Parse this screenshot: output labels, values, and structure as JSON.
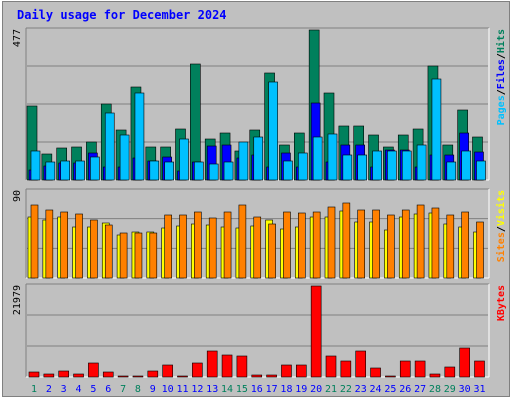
{
  "title": "Daily usage for December 2024",
  "colors": {
    "background": "#c0c0c0",
    "hits": "#00805c",
    "files": "#0000ff",
    "pages": "#00c0ff",
    "visits": "#ffff00",
    "sites": "#ff8000",
    "kbytes": "#ff0000",
    "weekend_day": "#00805c",
    "weekday_day": "#0000ff",
    "title_text": "#0000ff"
  },
  "chart_data": [
    {
      "type": "bar",
      "panel": "hits-files-pages",
      "axis_label": "477",
      "ylim": [
        0,
        477
      ],
      "grid": true,
      "legend": [
        {
          "text": "Pages",
          "color": "#00c0ff"
        },
        {
          "text": "/",
          "color": "#000000"
        },
        {
          "text": "Files",
          "color": "#0000ff"
        },
        {
          "text": "/",
          "color": "#000000"
        },
        {
          "text": "Hits",
          "color": "#00805c"
        }
      ],
      "categories": [
        "1",
        "2",
        "3",
        "4",
        "5",
        "6",
        "7",
        "8",
        "9",
        "10",
        "11",
        "12",
        "13",
        "14",
        "15",
        "16",
        "17",
        "18",
        "19",
        "20",
        "21",
        "22",
        "23",
        "24",
        "25",
        "26",
        "27",
        "28",
        "29",
        "30",
        "31"
      ],
      "series": [
        {
          "name": "Hits",
          "values": [
            235,
            82,
            103,
            105,
            122,
            243,
            160,
            297,
            105,
            105,
            162,
            369,
            131,
            150,
            92,
            158,
            339,
            112,
            150,
            477,
            278,
            173,
            173,
            143,
            106,
            143,
            162,
            363,
            112,
            224,
            138
          ]
        },
        {
          "name": "Files",
          "values": [
            32,
            45,
            55,
            55,
            86,
            40,
            40,
            70,
            60,
            72,
            30,
            56,
            108,
            112,
            70,
            80,
            40,
            85,
            40,
            245,
            56,
            110,
            112,
            40,
            96,
            96,
            40,
            80,
            80,
            150,
            90
          ]
        },
        {
          "name": "Pages",
          "values": [
            92,
            56,
            61,
            61,
            74,
            214,
            144,
            278,
            61,
            56,
            131,
            56,
            51,
            56,
            121,
            137,
            313,
            61,
            85,
            137,
            147,
            80,
            80,
            92,
            92,
            92,
            112,
            321,
            56,
            92,
            61
          ]
        }
      ]
    },
    {
      "type": "bar",
      "panel": "visits-sites",
      "axis_label": "90",
      "ylim": [
        0,
        90
      ],
      "grid": true,
      "legend": [
        {
          "text": "Sites",
          "color": "#ff8000"
        },
        {
          "text": "/",
          "color": "#000000"
        },
        {
          "text": "Visits",
          "color": "#ffff00"
        }
      ],
      "categories": [
        "1",
        "2",
        "3",
        "4",
        "5",
        "6",
        "7",
        "8",
        "9",
        "10",
        "11",
        "12",
        "13",
        "14",
        "15",
        "16",
        "17",
        "18",
        "19",
        "20",
        "21",
        "22",
        "23",
        "24",
        "25",
        "26",
        "27",
        "28",
        "29",
        "30",
        "31"
      ],
      "series": [
        {
          "name": "Visits",
          "values": [
            63,
            60,
            63,
            53,
            53,
            57,
            44,
            48,
            48,
            52,
            54,
            56,
            55,
            53,
            52,
            54,
            60,
            51,
            53,
            63,
            63,
            69,
            58,
            58,
            50,
            63,
            66,
            67,
            56,
            53,
            48
          ]
        },
        {
          "name": "Sites",
          "values": [
            75,
            70,
            68,
            66,
            60,
            55,
            47,
            47,
            47,
            65,
            65,
            68,
            62,
            68,
            75,
            63,
            56,
            68,
            67,
            68,
            73,
            78,
            70,
            70,
            65,
            70,
            75,
            72,
            65,
            68,
            58
          ]
        }
      ]
    },
    {
      "type": "bar",
      "panel": "kbytes",
      "axis_label": "21979",
      "ylim": [
        0,
        21979
      ],
      "grid": true,
      "legend": [
        {
          "text": "KBytes",
          "color": "#ff0000"
        }
      ],
      "categories": [
        "1",
        "2",
        "3",
        "4",
        "5",
        "6",
        "7",
        "8",
        "9",
        "10",
        "11",
        "12",
        "13",
        "14",
        "15",
        "16",
        "17",
        "18",
        "19",
        "20",
        "21",
        "22",
        "23",
        "24",
        "25",
        "26",
        "27",
        "28",
        "29",
        "30",
        "31"
      ],
      "series": [
        {
          "name": "KBytes",
          "values": [
            1100,
            700,
            1400,
            700,
            3500,
            1200,
            300,
            300,
            1400,
            3000,
            200,
            3500,
            6200,
            5200,
            5000,
            500,
            500,
            2900,
            3000,
            21979,
            5000,
            3800,
            6200,
            2200,
            200,
            3800,
            3800,
            700,
            2500,
            7000,
            3800
          ]
        }
      ]
    }
  ],
  "day_labels": [
    "1",
    "2",
    "3",
    "4",
    "5",
    "6",
    "7",
    "8",
    "9",
    "10",
    "11",
    "12",
    "13",
    "14",
    "15",
    "16",
    "17",
    "18",
    "19",
    "20",
    "21",
    "22",
    "23",
    "24",
    "25",
    "26",
    "27",
    "28",
    "29",
    "30",
    "31"
  ],
  "weekend_days": [
    "1",
    "7",
    "8",
    "14",
    "15",
    "21",
    "22",
    "28",
    "29"
  ]
}
